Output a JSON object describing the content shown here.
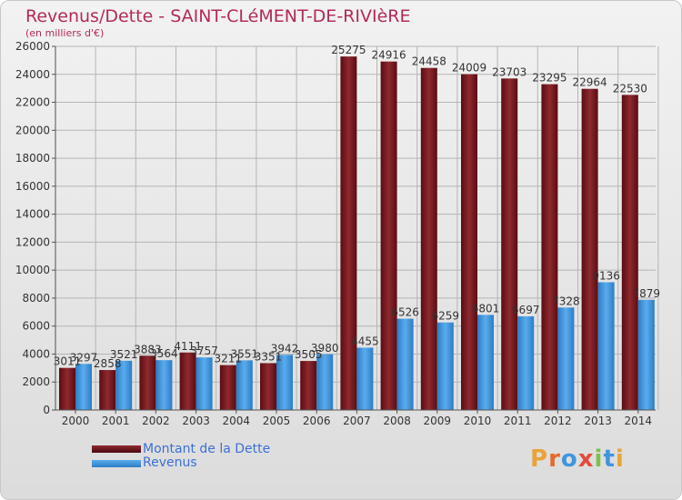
{
  "header": {
    "title": "Revenus/Dette - SAINT-CLéMENT-DE-RIVIèRE",
    "subtitle": "(en milliers d'€)"
  },
  "legend": {
    "debt_label": "Montant de la Dette",
    "revenue_label": "Revenus"
  },
  "logo": {
    "text": "Proxiti"
  },
  "colors": {
    "debt": "#7a1a22",
    "revenue": "#3f96dd",
    "title": "#b32a5a",
    "legend_text": "#3b6fd6"
  },
  "chart_data": {
    "type": "bar",
    "title": "Revenus/Dette - SAINT-CLéMENT-DE-RIVIèRE",
    "subtitle": "(en milliers d'€)",
    "categories": [
      "2000",
      "2001",
      "2002",
      "2003",
      "2004",
      "2005",
      "2006",
      "2007",
      "2008",
      "2009",
      "2010",
      "2011",
      "2012",
      "2013",
      "2014"
    ],
    "series": [
      {
        "name": "Montant de la Dette",
        "values": [
          3011,
          2858,
          3883,
          4111,
          3211,
          3351,
          3505,
          25275,
          24916,
          24458,
          24009,
          23703,
          23295,
          22964,
          22530
        ]
      },
      {
        "name": "Revenus",
        "values": [
          3297,
          3521,
          3564,
          3757,
          3551,
          3942,
          3980,
          4455,
          6526,
          6259,
          6801,
          6697,
          7328,
          9136,
          7879
        ]
      }
    ],
    "ylim": [
      0,
      26000
    ],
    "yticks": [
      0,
      2000,
      4000,
      6000,
      8000,
      10000,
      12000,
      14000,
      16000,
      18000,
      20000,
      22000,
      24000,
      26000
    ],
    "grid": true,
    "legend_position": "bottom-left"
  }
}
